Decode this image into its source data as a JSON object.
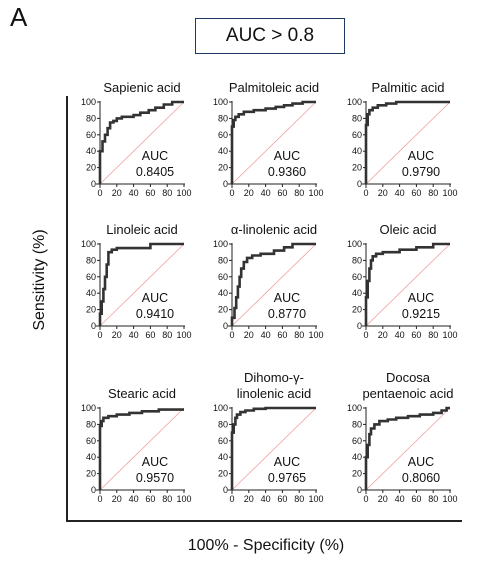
{
  "panel_letter": "A",
  "header_box": "AUC > 0.8",
  "ylabel": "Sensitivity (%)",
  "xlabel": "100% - Specificity (%)",
  "chart_data": [
    {
      "type": "line",
      "title": [
        "Sapienic acid"
      ],
      "auc_label": "AUC",
      "auc": "0.8405",
      "xlim": [
        0,
        100
      ],
      "ylim": [
        0,
        100
      ],
      "xticks": [
        0,
        20,
        40,
        60,
        80,
        100
      ],
      "yticks": [
        0,
        20,
        40,
        60,
        80,
        100
      ],
      "x": [
        0,
        0,
        3,
        3,
        6,
        6,
        9,
        9,
        12,
        12,
        16,
        16,
        20,
        20,
        26,
        26,
        40,
        40,
        48,
        48,
        58,
        58,
        66,
        66,
        76,
        76,
        86,
        86,
        100
      ],
      "y": [
        0,
        40,
        40,
        52,
        52,
        60,
        60,
        68,
        68,
        75,
        75,
        77,
        77,
        80,
        80,
        82,
        82,
        84,
        84,
        87,
        87,
        90,
        90,
        93,
        93,
        97,
        97,
        100,
        100
      ]
    },
    {
      "type": "line",
      "title": [
        "Palmitoleic acid"
      ],
      "auc_label": "AUC",
      "auc": "0.9360",
      "xlim": [
        0,
        100
      ],
      "ylim": [
        0,
        100
      ],
      "xticks": [
        0,
        20,
        40,
        60,
        80,
        100
      ],
      "yticks": [
        0,
        20,
        40,
        60,
        80,
        100
      ],
      "x": [
        0,
        0,
        2,
        2,
        4,
        4,
        8,
        8,
        14,
        14,
        26,
        26,
        40,
        40,
        52,
        52,
        62,
        62,
        72,
        72,
        84,
        84,
        100
      ],
      "y": [
        0,
        70,
        70,
        78,
        78,
        82,
        82,
        85,
        85,
        88,
        88,
        90,
        90,
        92,
        92,
        94,
        94,
        96,
        96,
        98,
        98,
        100,
        100
      ]
    },
    {
      "type": "line",
      "title": [
        "Palmitic acid"
      ],
      "auc_label": "AUC",
      "auc": "0.9790",
      "xlim": [
        0,
        100
      ],
      "ylim": [
        0,
        100
      ],
      "xticks": [
        0,
        20,
        40,
        60,
        80,
        100
      ],
      "yticks": [
        0,
        20,
        40,
        60,
        80,
        100
      ],
      "x": [
        0,
        0,
        2,
        2,
        4,
        4,
        8,
        8,
        14,
        14,
        24,
        24,
        36,
        36,
        100
      ],
      "y": [
        0,
        72,
        72,
        85,
        85,
        90,
        90,
        93,
        93,
        96,
        96,
        98,
        98,
        100,
        100
      ]
    },
    {
      "type": "line",
      "title": [
        "Linoleic acid"
      ],
      "auc_label": "AUC",
      "auc": "0.9410",
      "xlim": [
        0,
        100
      ],
      "ylim": [
        0,
        100
      ],
      "xticks": [
        0,
        20,
        40,
        60,
        80,
        100
      ],
      "yticks": [
        0,
        20,
        40,
        60,
        80,
        100
      ],
      "x": [
        0,
        0,
        2,
        2,
        4,
        4,
        6,
        6,
        8,
        8,
        10,
        10,
        14,
        14,
        20,
        20,
        60,
        60,
        100
      ],
      "y": [
        0,
        15,
        15,
        30,
        30,
        45,
        45,
        60,
        60,
        75,
        75,
        90,
        90,
        93,
        93,
        95,
        95,
        100,
        100
      ]
    },
    {
      "type": "line",
      "title": [
        "α-linolenic acid"
      ],
      "auc_label": "AUC",
      "auc": "0.8770",
      "xlim": [
        0,
        100
      ],
      "ylim": [
        0,
        100
      ],
      "xticks": [
        0,
        20,
        40,
        60,
        80,
        100
      ],
      "yticks": [
        0,
        20,
        40,
        60,
        80,
        100
      ],
      "x": [
        0,
        0,
        3,
        3,
        5,
        5,
        7,
        7,
        9,
        9,
        11,
        11,
        14,
        14,
        18,
        18,
        24,
        24,
        34,
        34,
        50,
        50,
        62,
        62,
        72,
        72,
        100
      ],
      "y": [
        0,
        10,
        10,
        22,
        22,
        35,
        35,
        48,
        48,
        60,
        60,
        70,
        70,
        78,
        78,
        83,
        83,
        86,
        86,
        88,
        88,
        92,
        92,
        96,
        96,
        100,
        100
      ]
    },
    {
      "type": "line",
      "title": [
        "Oleic acid"
      ],
      "auc_label": "AUC",
      "auc": "0.9215",
      "xlim": [
        0,
        100
      ],
      "ylim": [
        0,
        100
      ],
      "xticks": [
        0,
        20,
        40,
        60,
        80,
        100
      ],
      "yticks": [
        0,
        20,
        40,
        60,
        80,
        100
      ],
      "x": [
        0,
        0,
        2,
        2,
        4,
        4,
        6,
        6,
        8,
        8,
        12,
        12,
        20,
        20,
        40,
        40,
        60,
        60,
        80,
        80,
        100
      ],
      "y": [
        0,
        35,
        35,
        55,
        55,
        70,
        70,
        80,
        80,
        85,
        85,
        88,
        88,
        90,
        90,
        93,
        93,
        96,
        96,
        100,
        100
      ]
    },
    {
      "type": "line",
      "title": [
        "Stearic acid"
      ],
      "auc_label": "AUC",
      "auc": "0.9570",
      "xlim": [
        0,
        100
      ],
      "ylim": [
        0,
        100
      ],
      "xticks": [
        0,
        20,
        40,
        60,
        80,
        100
      ],
      "yticks": [
        0,
        20,
        40,
        60,
        80,
        100
      ],
      "x": [
        0,
        0,
        2,
        2,
        4,
        4,
        10,
        10,
        20,
        20,
        35,
        35,
        50,
        50,
        70,
        70,
        100
      ],
      "y": [
        0,
        78,
        78,
        84,
        84,
        88,
        88,
        90,
        90,
        92,
        92,
        94,
        94,
        96,
        96,
        98,
        98
      ]
    },
    {
      "type": "line",
      "title": [
        "Dihomo-γ-",
        "linolenic acid"
      ],
      "auc_label": "AUC",
      "auc": "0.9765",
      "xlim": [
        0,
        100
      ],
      "ylim": [
        0,
        100
      ],
      "xticks": [
        0,
        20,
        40,
        60,
        80,
        100
      ],
      "yticks": [
        0,
        20,
        40,
        60,
        80,
        100
      ],
      "x": [
        0,
        0,
        2,
        2,
        4,
        4,
        6,
        6,
        10,
        10,
        16,
        16,
        26,
        26,
        40,
        40,
        100
      ],
      "y": [
        0,
        70,
        70,
        80,
        80,
        88,
        88,
        92,
        92,
        95,
        95,
        97,
        97,
        99,
        99,
        100,
        100
      ]
    },
    {
      "type": "line",
      "title": [
        "Docosa",
        "pentaenoic acid"
      ],
      "auc_label": "AUC",
      "auc": "0.8060",
      "xlim": [
        0,
        100
      ],
      "ylim": [
        0,
        100
      ],
      "xticks": [
        0,
        20,
        40,
        60,
        80,
        100
      ],
      "yticks": [
        0,
        20,
        40,
        60,
        80,
        100
      ],
      "x": [
        0,
        0,
        2,
        2,
        4,
        4,
        6,
        6,
        10,
        10,
        16,
        16,
        26,
        26,
        36,
        36,
        50,
        50,
        64,
        64,
        80,
        80,
        90,
        90,
        96,
        96,
        100
      ],
      "y": [
        0,
        40,
        40,
        55,
        55,
        68,
        68,
        75,
        75,
        80,
        80,
        84,
        84,
        86,
        86,
        88,
        88,
        90,
        90,
        92,
        92,
        94,
        94,
        97,
        97,
        100,
        100
      ]
    }
  ]
}
